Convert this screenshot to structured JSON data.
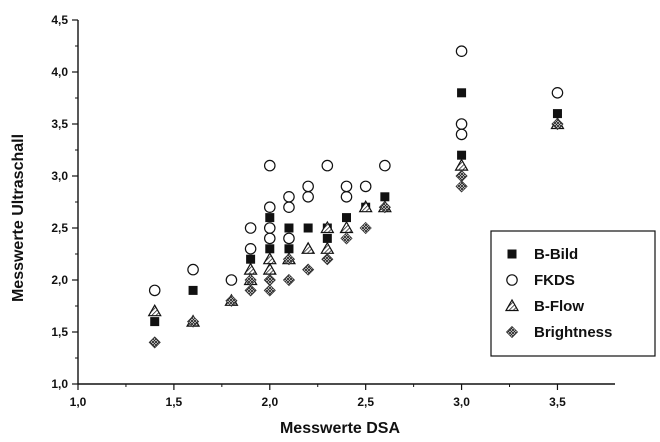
{
  "chart_data": {
    "type": "scatter",
    "title": "",
    "xlabel": "Messwerte DSA",
    "ylabel": "Messwerte Ultraschall",
    "xlim": [
      1.0,
      3.8
    ],
    "ylim": [
      1.0,
      4.5
    ],
    "xticks": [
      1.0,
      1.5,
      2.0,
      2.5,
      3.0,
      3.5
    ],
    "yticks": [
      1.0,
      1.5,
      2.0,
      2.5,
      3.0,
      3.5,
      4.0,
      4.5
    ],
    "xtick_labels": [
      "1,0",
      "1,5",
      "2,0",
      "2,5",
      "3,0",
      "3,5"
    ],
    "ytick_labels": [
      "1,0",
      "1,5",
      "2,0",
      "2,5",
      "3,0",
      "3,5",
      "4,0",
      "4,5"
    ],
    "grid": false,
    "legend_position": "right",
    "series": [
      {
        "name": "B-Bild",
        "marker": "filled-square",
        "color": "#111111",
        "points": [
          [
            1.4,
            1.6
          ],
          [
            1.6,
            1.9
          ],
          [
            1.9,
            2.2
          ],
          [
            2.0,
            2.6
          ],
          [
            2.0,
            2.3
          ],
          [
            2.1,
            2.5
          ],
          [
            2.1,
            2.3
          ],
          [
            2.2,
            2.5
          ],
          [
            2.3,
            2.5
          ],
          [
            2.3,
            2.4
          ],
          [
            2.4,
            2.6
          ],
          [
            2.5,
            2.7
          ],
          [
            2.6,
            2.8
          ],
          [
            3.0,
            3.8
          ],
          [
            3.0,
            3.2
          ],
          [
            3.5,
            3.6
          ]
        ]
      },
      {
        "name": "FKDS",
        "marker": "open-circle",
        "color": "#111111",
        "points": [
          [
            1.4,
            1.9
          ],
          [
            1.6,
            2.1
          ],
          [
            1.8,
            2.0
          ],
          [
            1.9,
            2.5
          ],
          [
            1.9,
            2.3
          ],
          [
            2.0,
            3.1
          ],
          [
            2.0,
            2.7
          ],
          [
            2.0,
            2.5
          ],
          [
            2.0,
            2.4
          ],
          [
            2.1,
            2.8
          ],
          [
            2.1,
            2.7
          ],
          [
            2.1,
            2.4
          ],
          [
            2.2,
            2.9
          ],
          [
            2.2,
            2.8
          ],
          [
            2.3,
            3.1
          ],
          [
            2.4,
            2.9
          ],
          [
            2.4,
            2.8
          ],
          [
            2.5,
            2.9
          ],
          [
            2.6,
            3.1
          ],
          [
            3.0,
            4.2
          ],
          [
            3.0,
            3.5
          ],
          [
            3.0,
            3.4
          ],
          [
            3.5,
            3.8
          ]
        ]
      },
      {
        "name": "B-Flow",
        "marker": "hatched-triangle",
        "color": "#111111",
        "points": [
          [
            1.4,
            1.7
          ],
          [
            1.6,
            1.6
          ],
          [
            1.8,
            1.8
          ],
          [
            1.9,
            2.1
          ],
          [
            1.9,
            2.0
          ],
          [
            2.0,
            2.2
          ],
          [
            2.0,
            2.1
          ],
          [
            2.1,
            2.2
          ],
          [
            2.2,
            2.3
          ],
          [
            2.3,
            2.5
          ],
          [
            2.3,
            2.3
          ],
          [
            2.4,
            2.5
          ],
          [
            2.5,
            2.7
          ],
          [
            2.6,
            2.7
          ],
          [
            3.0,
            3.1
          ],
          [
            3.5,
            3.5
          ]
        ]
      },
      {
        "name": "Brightness",
        "marker": "hatched-diamond",
        "color": "#111111",
        "points": [
          [
            1.4,
            1.4
          ],
          [
            1.6,
            1.6
          ],
          [
            1.8,
            1.8
          ],
          [
            1.9,
            1.9
          ],
          [
            1.9,
            2.0
          ],
          [
            2.0,
            1.9
          ],
          [
            2.0,
            2.0
          ],
          [
            2.1,
            2.0
          ],
          [
            2.1,
            2.2
          ],
          [
            2.2,
            2.1
          ],
          [
            2.3,
            2.2
          ],
          [
            2.4,
            2.4
          ],
          [
            2.5,
            2.5
          ],
          [
            2.6,
            2.7
          ],
          [
            3.0,
            2.9
          ],
          [
            3.0,
            3.0
          ],
          [
            3.5,
            3.5
          ]
        ]
      }
    ]
  }
}
